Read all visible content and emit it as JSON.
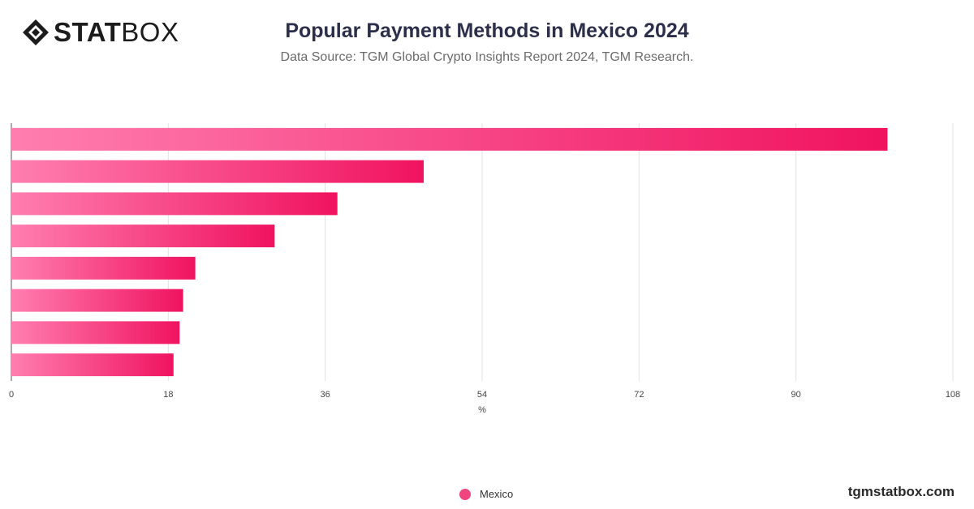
{
  "header": {
    "logo_bold": "STAT",
    "logo_light": "BOX",
    "title": "Popular Payment Methods in Mexico 2024",
    "subtitle": "Data Source: TGM Global Crypto Insights Report 2024, TGM Research."
  },
  "chart_data": {
    "type": "bar",
    "orientation": "horizontal",
    "categories": [
      "",
      "",
      "",
      "",
      "",
      "",
      "",
      ""
    ],
    "series": [
      {
        "name": "Mexico",
        "values": [
          100.5,
          47.3,
          37.4,
          30.2,
          21.1,
          19.7,
          19.3,
          18.6
        ]
      }
    ],
    "xlabel": "%",
    "xlim": [
      0,
      108
    ],
    "xticks": [
      0,
      18,
      36,
      54,
      72,
      90,
      108
    ],
    "grid": true,
    "legend": "bottom-center",
    "colors": {
      "bar_start": "#ff7eb0",
      "bar_end": "#f0135f",
      "legend_dot": "#f0457f"
    }
  },
  "legend": {
    "label": "Mexico"
  },
  "footer": {
    "site": "tgmstatbox.com"
  }
}
